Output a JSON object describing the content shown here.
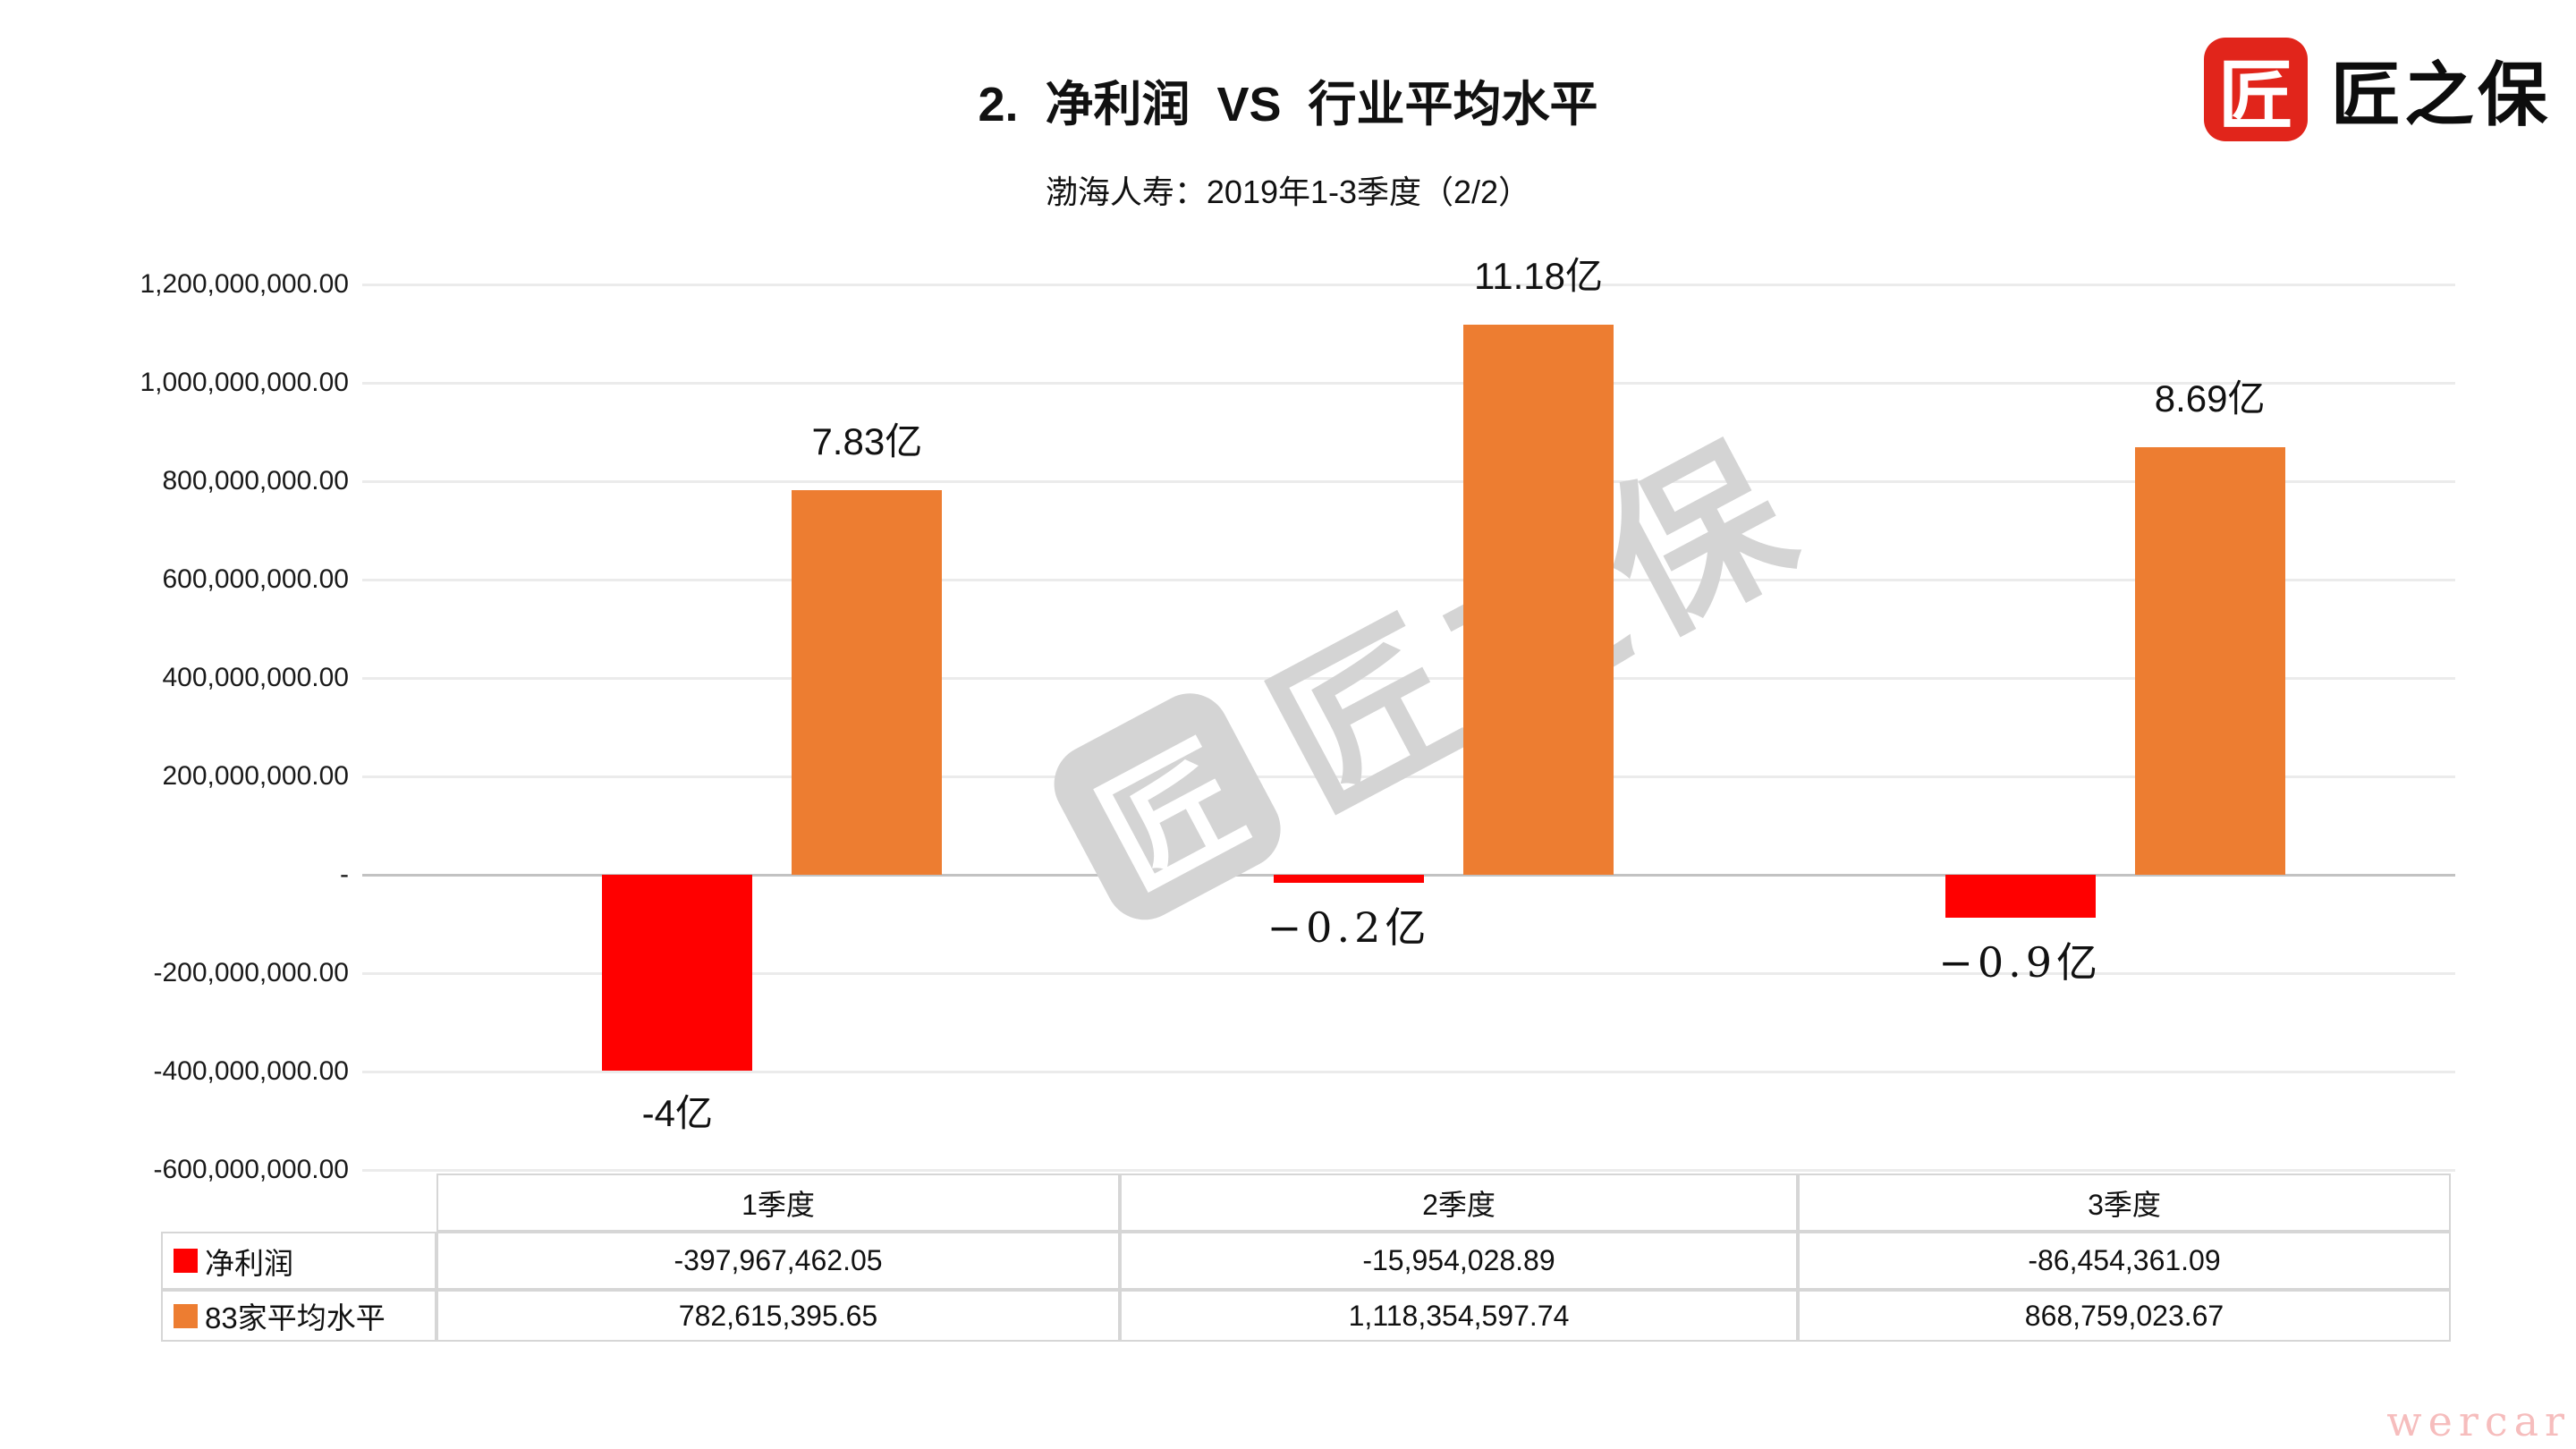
{
  "page": {
    "title": "2.  净利润  VS  行业平均水平",
    "subtitle": "渤海人寿：2019年1-3季度（2/2）"
  },
  "brand": {
    "logo_text": "匠之保",
    "logo_icon_char": "匠",
    "logo_color": "#E1251B"
  },
  "watermark": {
    "icon_char": "匠",
    "text": "匠之保",
    "color": "#d4d4d4"
  },
  "corner_watermark": "wercar",
  "chart_data": {
    "type": "bar",
    "categories": [
      "1季度",
      "2季度",
      "3季度"
    ],
    "series": [
      {
        "name": "净利润",
        "color": "#FF0000",
        "values": [
          -397967462.05,
          -15954028.89,
          -86454361.09
        ],
        "labels": [
          "-4亿",
          "−0.2亿",
          "−0.9亿"
        ],
        "label_styles": [
          "sans",
          "serif",
          "serif"
        ]
      },
      {
        "name": "83家平均水平",
        "color": "#ED7D31",
        "values": [
          782615395.65,
          1118354597.74,
          868759023.67
        ],
        "labels": [
          "7.83亿",
          "11.18亿",
          "8.69亿"
        ],
        "label_styles": [
          "sans",
          "sans",
          "sans"
        ]
      }
    ],
    "ylim": [
      -600000000,
      1200000000
    ],
    "ytick_step": 200000000,
    "ytick_labels": [
      "1,200,000,000.00",
      "1,000,000,000.00",
      "800,000,000.00",
      "600,000,000.00",
      "400,000,000.00",
      "200,000,000.00",
      "-",
      "-200,000,000.00",
      "-400,000,000.00",
      "-600,000,000.00"
    ],
    "grid": true,
    "legend_position": "data-table-left",
    "colors": {
      "gridline": "#ebebeb",
      "zero_line": "#c2c2c2",
      "table_border": "#d6d6d6"
    }
  },
  "table": {
    "columns": [
      "1季度",
      "2季度",
      "3季度"
    ],
    "rows": [
      {
        "label": "净利润",
        "swatch": "#FF0000",
        "values": [
          "-397,967,462.05",
          "-15,954,028.89",
          "-86,454,361.09"
        ]
      },
      {
        "label": "83家平均水平",
        "swatch": "#ED7D31",
        "values": [
          "782,615,395.65",
          "1,118,354,597.74",
          "868,759,023.67"
        ]
      }
    ]
  }
}
